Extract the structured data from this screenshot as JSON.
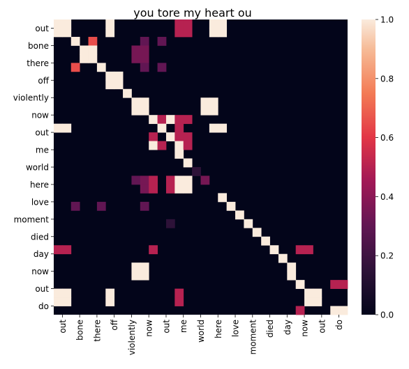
{
  "chart_data": {
    "type": "heatmap",
    "title": "you tore my heart ou",
    "xlabel": "",
    "ylabel": "",
    "x_labels": [
      "out",
      "bone",
      "there",
      "off",
      "violently",
      "now",
      "out",
      "me",
      "world",
      "here",
      "love",
      "moment",
      "died",
      "day",
      "now",
      "out",
      "do"
    ],
    "y_labels": [
      "out",
      "bone",
      "there",
      "off",
      "violently",
      "now",
      "out",
      "me",
      "world",
      "here",
      "love",
      "moment",
      "died",
      "day",
      "now",
      "out",
      "do"
    ],
    "grid": false,
    "colormap": "rocket",
    "colorbar": {
      "range": [
        0.0,
        1.0
      ],
      "ticks": [
        "0.0",
        "0.2",
        "0.4",
        "0.6",
        "0.8",
        "1.0"
      ],
      "placement": "right"
    },
    "matrix_rows": 34,
    "matrix_cols": 34,
    "cells": [
      [
        0,
        0,
        1.0
      ],
      [
        0,
        1,
        1.0
      ],
      [
        0,
        6,
        1.0
      ],
      [
        0,
        14,
        0.5
      ],
      [
        0,
        15,
        0.5
      ],
      [
        0,
        18,
        1.0
      ],
      [
        0,
        19,
        1.0
      ],
      [
        1,
        0,
        1.0
      ],
      [
        1,
        1,
        1.0
      ],
      [
        1,
        6,
        1.0
      ],
      [
        1,
        14,
        0.5
      ],
      [
        1,
        15,
        0.5
      ],
      [
        1,
        18,
        1.0
      ],
      [
        1,
        19,
        1.0
      ],
      [
        2,
        2,
        1.0
      ],
      [
        2,
        4,
        0.65
      ],
      [
        2,
        10,
        0.3
      ],
      [
        2,
        12,
        0.3
      ],
      [
        3,
        3,
        1.0
      ],
      [
        3,
        4,
        1.0
      ],
      [
        3,
        9,
        0.35
      ],
      [
        3,
        10,
        0.35
      ],
      [
        4,
        3,
        1.0
      ],
      [
        4,
        4,
        1.0
      ],
      [
        4,
        9,
        0.35
      ],
      [
        4,
        10,
        0.35
      ],
      [
        5,
        2,
        0.65
      ],
      [
        5,
        5,
        1.0
      ],
      [
        5,
        10,
        0.3
      ],
      [
        5,
        12,
        0.3
      ],
      [
        6,
        6,
        1.0
      ],
      [
        6,
        7,
        1.0
      ],
      [
        7,
        6,
        1.0
      ],
      [
        7,
        7,
        1.0
      ],
      [
        8,
        8,
        1.0
      ],
      [
        9,
        9,
        1.0
      ],
      [
        9,
        10,
        1.0
      ],
      [
        9,
        17,
        1.0
      ],
      [
        9,
        18,
        1.0
      ],
      [
        10,
        9,
        1.0
      ],
      [
        10,
        10,
        1.0
      ],
      [
        10,
        17,
        1.0
      ],
      [
        10,
        18,
        1.0
      ],
      [
        11,
        11,
        1.0
      ],
      [
        11,
        12,
        0.5
      ],
      [
        11,
        13,
        1.0
      ],
      [
        11,
        14,
        0.5
      ],
      [
        11,
        15,
        0.5
      ],
      [
        12,
        0,
        1.0
      ],
      [
        12,
        1,
        1.0
      ],
      [
        12,
        12,
        1.0
      ],
      [
        12,
        14,
        0.5
      ],
      [
        12,
        18,
        1.0
      ],
      [
        12,
        19,
        1.0
      ],
      [
        13,
        11,
        0.5
      ],
      [
        13,
        13,
        1.0
      ],
      [
        13,
        14,
        0.5
      ],
      [
        13,
        15,
        0.5
      ],
      [
        14,
        11,
        1.0
      ],
      [
        14,
        12,
        0.5
      ],
      [
        14,
        14,
        1.0
      ],
      [
        14,
        15,
        0.5
      ],
      [
        15,
        14,
        1.0
      ],
      [
        16,
        15,
        1.0
      ],
      [
        17,
        16,
        0.15
      ],
      [
        18,
        9,
        0.3
      ],
      [
        18,
        10,
        0.35
      ],
      [
        18,
        11,
        0.5
      ],
      [
        18,
        13,
        0.5
      ],
      [
        18,
        14,
        1.0
      ],
      [
        18,
        15,
        1.0
      ],
      [
        18,
        17,
        0.35
      ],
      [
        19,
        10,
        0.35
      ],
      [
        19,
        11,
        0.5
      ],
      [
        19,
        13,
        0.5
      ],
      [
        19,
        14,
        1.0
      ],
      [
        19,
        15,
        1.0
      ],
      [
        20,
        19,
        1.0
      ],
      [
        21,
        2,
        0.3
      ],
      [
        21,
        5,
        0.3
      ],
      [
        21,
        10,
        0.3
      ],
      [
        21,
        20,
        1.0
      ],
      [
        22,
        21,
        1.0
      ],
      [
        23,
        13,
        0.15
      ],
      [
        23,
        22,
        1.0
      ],
      [
        24,
        23,
        1.0
      ],
      [
        25,
        24,
        1.0
      ],
      [
        26,
        0,
        0.5
      ],
      [
        26,
        1,
        0.5
      ],
      [
        26,
        11,
        0.5
      ],
      [
        26,
        25,
        1.0
      ],
      [
        26,
        28,
        0.5
      ],
      [
        26,
        29,
        0.5
      ],
      [
        27,
        26,
        1.0
      ],
      [
        28,
        9,
        1.0
      ],
      [
        28,
        10,
        1.0
      ],
      [
        28,
        27,
        1.0
      ],
      [
        29,
        9,
        1.0
      ],
      [
        29,
        10,
        1.0
      ],
      [
        29,
        27,
        1.0
      ],
      [
        30,
        28,
        1.0
      ],
      [
        30,
        32,
        0.5
      ],
      [
        30,
        33,
        0.5
      ],
      [
        31,
        0,
        1.0
      ],
      [
        31,
        1,
        1.0
      ],
      [
        31,
        6,
        1.0
      ],
      [
        31,
        14,
        0.5
      ],
      [
        31,
        29,
        1.0
      ],
      [
        31,
        30,
        1.0
      ],
      [
        32,
        0,
        1.0
      ],
      [
        32,
        1,
        1.0
      ],
      [
        32,
        6,
        1.0
      ],
      [
        32,
        14,
        0.5
      ],
      [
        32,
        29,
        1.0
      ],
      [
        32,
        30,
        1.0
      ],
      [
        33,
        28,
        0.5
      ],
      [
        33,
        32,
        1.0
      ],
      [
        33,
        33,
        1.0
      ]
    ]
  }
}
